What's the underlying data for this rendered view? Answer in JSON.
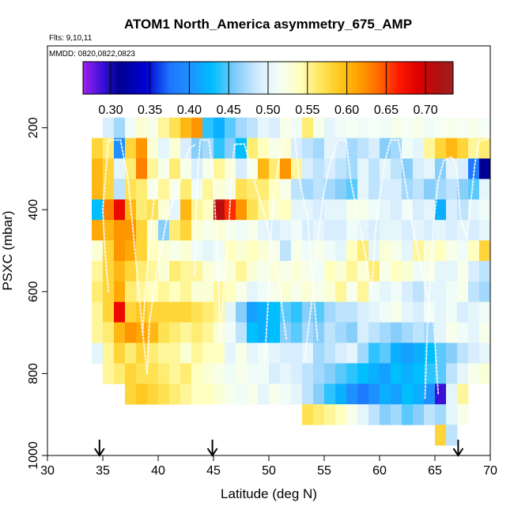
{
  "chart_data": {
    "type": "heatmap",
    "title": "ATOM1 North_America asymmetry_675_AMP",
    "flights_label": "Flts: 9,10,11",
    "dates_label": "MMDD: 0820,0822,0823",
    "xlabel": "Latitude (deg N)",
    "ylabel": "PSXC (mbar)",
    "xlim": [
      30,
      70
    ],
    "ylim": [
      1000,
      0
    ],
    "x_ticks": [
      30,
      35,
      40,
      45,
      50,
      55,
      60,
      65,
      70
    ],
    "y_ticks": [
      200,
      400,
      600,
      800,
      1000
    ],
    "colorbar": {
      "range": [
        0.265,
        0.735
      ],
      "ticks": [
        0.3,
        0.35,
        0.4,
        0.45,
        0.5,
        0.55,
        0.6,
        0.65,
        0.7
      ],
      "tick_labels": [
        "0.30",
        "0.35",
        "0.40",
        "0.45",
        "0.50",
        "0.55",
        "0.60",
        "0.65",
        "0.70"
      ],
      "stops": [
        {
          "v": 0.265,
          "c": "#a020f0"
        },
        {
          "v": 0.29,
          "c": "#3a10d8"
        },
        {
          "v": 0.31,
          "c": "#000090"
        },
        {
          "v": 0.345,
          "c": "#0000d0"
        },
        {
          "v": 0.375,
          "c": "#1e74ff"
        },
        {
          "v": 0.4,
          "c": "#1e90ff"
        },
        {
          "v": 0.43,
          "c": "#00bfff"
        },
        {
          "v": 0.46,
          "c": "#87cefa"
        },
        {
          "v": 0.49,
          "c": "#d8eeff"
        },
        {
          "v": 0.515,
          "c": "#f5fff5"
        },
        {
          "v": 0.54,
          "c": "#ffffc0"
        },
        {
          "v": 0.565,
          "c": "#ffe860"
        },
        {
          "v": 0.59,
          "c": "#ffc820"
        },
        {
          "v": 0.615,
          "c": "#ffa000"
        },
        {
          "v": 0.64,
          "c": "#ff6a00"
        },
        {
          "v": 0.665,
          "c": "#ff1a00"
        },
        {
          "v": 0.69,
          "c": "#e00000"
        },
        {
          "v": 0.715,
          "c": "#b01010"
        },
        {
          "v": 0.735,
          "c": "#a02020"
        }
      ]
    },
    "bin_latitude_width": 1,
    "bin_pressure_height": 50,
    "rows": [
      {
        "p": 200,
        "lat0": 35,
        "values": [
          0.49,
          0.47,
          0.51,
          0.53,
          0.52,
          0.55,
          0.57,
          0.6,
          0.62,
          0.44,
          0.42,
          0.45,
          0.47,
          0.48,
          0.5,
          0.49,
          0.52,
          0.51,
          0.56,
          0.52,
          0.5,
          0.51,
          0.515,
          0.51,
          0.515,
          0.51,
          0.52,
          0.515,
          0.52,
          0.51,
          0.515,
          0.52,
          0.515,
          0.52,
          0.515,
          0.515
        ]
      },
      {
        "p": 250,
        "lat0": 34,
        "values": [
          0.58,
          0.56,
          0.4,
          0.58,
          0.62,
          0.53,
          0.5,
          0.53,
          0.49,
          0.46,
          0.47,
          0.44,
          0.46,
          0.43,
          0.56,
          0.54,
          0.52,
          0.53,
          0.49,
          0.48,
          0.47,
          0.5,
          0.49,
          0.47,
          0.48,
          0.49,
          0.46,
          0.47,
          0.51,
          0.5,
          0.55,
          0.58,
          0.6,
          0.58,
          0.55,
          0.56,
          0.53,
          0.55,
          0.5
        ]
      },
      {
        "p": 300,
        "lat0": 34,
        "values": [
          0.6,
          0.58,
          0.5,
          0.56,
          0.63,
          0.55,
          0.52,
          0.56,
          0.52,
          0.49,
          0.52,
          0.55,
          0.53,
          0.49,
          0.52,
          0.6,
          0.56,
          0.62,
          0.55,
          0.49,
          0.48,
          0.49,
          0.48,
          0.47,
          0.5,
          0.48,
          0.5,
          0.48,
          0.46,
          0.49,
          0.5,
          0.46,
          0.5,
          0.49,
          0.38,
          0.31,
          0.28,
          0.48,
          0.47
        ]
      },
      {
        "p": 350,
        "lat0": 34,
        "values": [
          0.6,
          0.58,
          0.48,
          0.57,
          0.56,
          0.52,
          0.55,
          0.52,
          0.56,
          0.51,
          0.55,
          0.53,
          0.52,
          0.57,
          0.56,
          0.56,
          0.54,
          0.52,
          0.48,
          0.47,
          0.48,
          0.47,
          0.46,
          0.45,
          0.5,
          0.48,
          0.49,
          0.49,
          0.47,
          0.48,
          0.46,
          0.47,
          0.48,
          0.46,
          0.45,
          0.5,
          0.48,
          0.47,
          0.46
        ]
      },
      {
        "p": 400,
        "lat0": 34,
        "values": [
          0.43,
          0.63,
          0.68,
          0.6,
          0.56,
          0.57,
          0.53,
          0.5,
          0.6,
          0.55,
          0.54,
          0.71,
          0.66,
          0.62,
          0.57,
          0.55,
          0.53,
          0.54,
          0.5,
          0.5,
          0.49,
          0.5,
          0.5,
          0.52,
          0.52,
          0.51,
          0.5,
          0.49,
          0.51,
          0.49,
          0.5,
          0.42,
          0.49,
          0.48,
          0.5,
          0.51,
          0.5,
          0.47,
          0.55
        ]
      },
      {
        "p": 450,
        "lat0": 34,
        "values": [
          0.61,
          0.6,
          0.62,
          0.62,
          0.58,
          0.53,
          0.46,
          0.56,
          0.58,
          0.53,
          0.52,
          0.53,
          0.52,
          0.51,
          0.52,
          0.5,
          0.49,
          0.5,
          0.51,
          0.49,
          0.5,
          0.49,
          0.49,
          0.51,
          0.5,
          0.49,
          0.5,
          0.5,
          0.49,
          0.5,
          0.49,
          0.5,
          0.49,
          0.5,
          0.49,
          0.5,
          0.55,
          0.51,
          0.5
        ]
      },
      {
        "p": 500,
        "lat0": 34,
        "values": [
          0.53,
          0.58,
          0.62,
          0.61,
          0.58,
          0.54,
          0.53,
          0.52,
          0.53,
          0.51,
          0.5,
          0.51,
          0.54,
          0.53,
          0.54,
          0.53,
          0.52,
          0.48,
          0.52,
          0.51,
          0.52,
          0.51,
          0.5,
          0.54,
          0.56,
          0.5,
          0.53,
          0.52,
          0.5,
          0.55,
          0.53,
          0.54,
          0.52,
          0.51,
          0.54,
          0.58,
          0.53,
          0.52,
          0.49
        ]
      },
      {
        "p": 550,
        "lat0": 34,
        "values": [
          0.55,
          0.58,
          0.6,
          0.58,
          0.56,
          0.55,
          0.53,
          0.56,
          0.55,
          0.55,
          0.53,
          0.52,
          0.53,
          0.55,
          0.53,
          0.52,
          0.53,
          0.52,
          0.53,
          0.52,
          0.51,
          0.54,
          0.53,
          0.55,
          0.53,
          0.56,
          0.52,
          0.54,
          0.53,
          0.51,
          0.52,
          0.5,
          0.5,
          0.52,
          0.49,
          0.48,
          0.46,
          0.45,
          0.44
        ]
      },
      {
        "p": 600,
        "lat0": 34,
        "values": [
          0.56,
          0.58,
          0.61,
          0.56,
          0.55,
          0.54,
          0.55,
          0.54,
          0.55,
          0.53,
          0.53,
          0.55,
          0.54,
          0.52,
          0.5,
          0.51,
          0.52,
          0.53,
          0.52,
          0.53,
          0.52,
          0.53,
          0.55,
          0.52,
          0.55,
          0.51,
          0.5,
          0.51,
          0.49,
          0.48,
          0.5,
          0.5,
          0.51,
          0.52,
          0.48,
          0.47,
          0.48,
          0.47,
          0.47
        ]
      },
      {
        "p": 650,
        "lat0": 34,
        "values": [
          0.55,
          0.58,
          0.68,
          0.58,
          0.59,
          0.58,
          0.58,
          0.58,
          0.58,
          0.57,
          0.56,
          0.55,
          0.5,
          0.46,
          0.41,
          0.42,
          0.43,
          0.45,
          0.44,
          0.46,
          0.45,
          0.47,
          0.48,
          0.48,
          0.49,
          0.5,
          0.51,
          0.52,
          0.5,
          0.49,
          0.51,
          0.5,
          0.51,
          0.49,
          0.5,
          0.51,
          0.52,
          0.51,
          0.5
        ]
      },
      {
        "p": 700,
        "lat0": 34,
        "values": [
          0.55,
          0.56,
          0.6,
          0.62,
          0.61,
          0.6,
          0.57,
          0.56,
          0.55,
          0.56,
          0.55,
          0.53,
          0.51,
          0.48,
          0.43,
          0.42,
          0.43,
          0.46,
          0.45,
          0.47,
          0.46,
          0.48,
          0.47,
          0.46,
          0.49,
          0.48,
          0.47,
          0.46,
          0.47,
          0.48,
          0.47,
          0.5,
          0.52,
          0.51,
          0.5,
          0.52,
          0.5,
          0.51,
          0.52
        ]
      },
      {
        "p": 750,
        "lat0": 34,
        "values": [
          0.5,
          0.55,
          0.58,
          0.56,
          0.58,
          0.56,
          0.55,
          0.55,
          0.53,
          0.55,
          0.54,
          0.54,
          0.5,
          0.52,
          0.5,
          0.51,
          0.5,
          0.49,
          0.49,
          0.5,
          0.47,
          0.48,
          0.49,
          0.5,
          0.47,
          0.44,
          0.45,
          0.42,
          0.41,
          0.42,
          0.43,
          0.45,
          0.46,
          0.48,
          0.49,
          0.5,
          0.52,
          0.51,
          0.53
        ]
      },
      {
        "p": 800,
        "lat0": 35,
        "values": [
          0.55,
          0.56,
          0.58,
          0.57,
          0.57,
          0.56,
          0.55,
          0.56,
          0.54,
          0.53,
          0.52,
          0.51,
          0.52,
          0.51,
          0.51,
          0.49,
          0.5,
          0.49,
          0.48,
          0.47,
          0.46,
          0.45,
          0.44,
          0.43,
          0.42,
          0.41,
          0.43,
          0.42,
          0.43,
          0.44,
          0.45,
          0.48,
          0.5,
          0.52,
          0.53,
          0.51,
          0.55
        ]
      },
      {
        "p": 850,
        "lat0": 37,
        "values": [
          0.58,
          0.59,
          0.58,
          0.57,
          0.56,
          0.55,
          0.54,
          0.54,
          0.53,
          0.52,
          0.51,
          0.52,
          0.5,
          0.52,
          0.51,
          0.5,
          0.48,
          0.46,
          0.44,
          0.42,
          0.4,
          0.38,
          0.4,
          0.42,
          0.41,
          0.43,
          0.42,
          0.4,
          0.29,
          0.5,
          0.55
        ]
      },
      {
        "p": 900,
        "lat0": 53,
        "values": [
          0.57,
          0.56,
          0.55,
          0.54,
          0.52,
          0.5,
          0.48,
          0.46,
          0.47,
          0.45,
          0.46,
          0.48,
          0.47,
          0.5,
          0.52
        ]
      },
      {
        "p": 950,
        "lat0": 65,
        "values": [
          0.58,
          0.48
        ]
      }
    ],
    "flight_markers_latitude": [
      34.7,
      44.9,
      67.1
    ],
    "profile_paths": [
      [
        [
          35.5,
          600
        ],
        [
          35.2,
          500
        ],
        [
          35.0,
          400
        ],
        [
          35.3,
          300
        ],
        [
          35.5,
          230
        ],
        [
          36.6,
          230
        ],
        [
          37.3,
          330
        ],
        [
          37.8,
          470
        ],
        [
          38.6,
          700
        ],
        [
          39.0,
          800
        ]
      ],
      [
        [
          38.6,
          700
        ],
        [
          38.9,
          580
        ],
        [
          39.4,
          430
        ],
        [
          39.8,
          330
        ],
        [
          40.1,
          320
        ]
      ],
      [
        [
          39.0,
          800
        ],
        [
          39.2,
          680
        ],
        [
          39.8,
          560
        ],
        [
          40.8,
          420
        ],
        [
          42.0,
          330
        ],
        [
          42.8,
          250
        ],
        [
          43.4,
          240
        ]
      ],
      [
        [
          43.3,
          560
        ],
        [
          43.4,
          430
        ],
        [
          43.6,
          300
        ],
        [
          43.8,
          230
        ],
        [
          44.6,
          230
        ],
        [
          45.0,
          330
        ],
        [
          45.3,
          480
        ],
        [
          45.5,
          620
        ],
        [
          45.6,
          730
        ]
      ],
      [
        [
          45.6,
          730
        ],
        [
          45.9,
          600
        ],
        [
          46.3,
          480
        ],
        [
          46.6,
          330
        ],
        [
          46.9,
          240
        ],
        [
          47.8,
          240
        ],
        [
          48.8,
          340
        ],
        [
          49.8,
          430
        ],
        [
          50.8,
          560
        ],
        [
          51.6,
          720
        ]
      ],
      [
        [
          49.6,
          790
        ],
        [
          49.9,
          640
        ],
        [
          50.1,
          500
        ],
        [
          50.4,
          380
        ],
        [
          50.9,
          280
        ],
        [
          51.6,
          210
        ],
        [
          52.3,
          210
        ],
        [
          52.7,
          320
        ],
        [
          53.5,
          420
        ],
        [
          53.9,
          560
        ],
        [
          54.4,
          720
        ]
      ],
      [
        [
          53.2,
          770
        ],
        [
          53.9,
          620
        ],
        [
          54.4,
          480
        ],
        [
          54.9,
          370
        ],
        [
          55.4,
          300
        ],
        [
          56.2,
          230
        ],
        [
          57.0,
          230
        ],
        [
          57.4,
          330
        ],
        [
          58.3,
          450
        ],
        [
          59.3,
          600
        ]
      ],
      [
        [
          59.3,
          600
        ],
        [
          59.6,
          460
        ],
        [
          60.0,
          370
        ],
        [
          60.5,
          280
        ],
        [
          61.0,
          230
        ],
        [
          61.7,
          230
        ],
        [
          62.3,
          330
        ],
        [
          62.9,
          430
        ],
        [
          63.9,
          560
        ],
        [
          64.9,
          680
        ],
        [
          65.3,
          850
        ]
      ],
      [
        [
          64.1,
          860
        ],
        [
          64.3,
          700
        ],
        [
          64.6,
          560
        ],
        [
          64.9,
          430
        ],
        [
          65.3,
          330
        ],
        [
          65.8,
          280
        ],
        [
          66.5,
          270
        ],
        [
          67.0,
          300
        ],
        [
          67.3,
          420
        ],
        [
          67.9,
          470
        ],
        [
          68.6,
          290
        ],
        [
          69.0,
          230
        ],
        [
          69.6,
          230
        ],
        [
          70.0,
          220
        ]
      ]
    ]
  }
}
